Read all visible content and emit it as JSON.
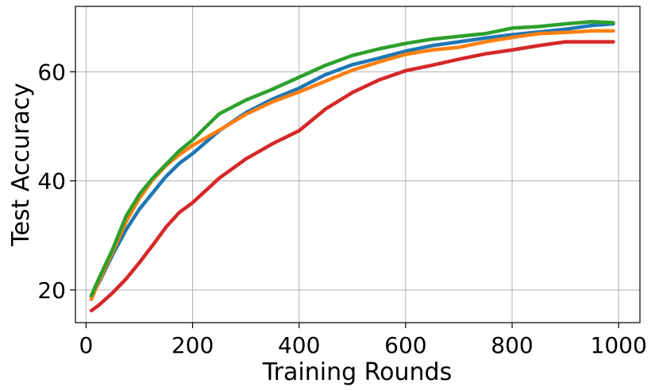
{
  "chart_data": {
    "type": "line",
    "title": "",
    "xlabel": "Training Rounds",
    "ylabel": "Test Accuracy",
    "xlim": [
      -20,
      1040
    ],
    "ylim": [
      14,
      72
    ],
    "xticks": [
      0,
      200,
      400,
      600,
      800,
      1000
    ],
    "yticks": [
      20,
      40,
      60
    ],
    "grid": true,
    "series": [
      {
        "color": "#1f77b4",
        "x": [
          10,
          25,
          50,
          75,
          100,
          125,
          150,
          175,
          200,
          250,
          300,
          350,
          400,
          450,
          500,
          550,
          600,
          650,
          700,
          750,
          800,
          850,
          900,
          950,
          990
        ],
        "y": [
          18.8,
          21.5,
          26.5,
          31,
          34.8,
          37.8,
          40.8,
          43.2,
          45,
          49.2,
          52.5,
          55,
          57,
          59.5,
          61.3,
          62.5,
          63.8,
          64.8,
          65.5,
          66.2,
          66.8,
          67.3,
          67.8,
          68.5,
          68.8
        ]
      },
      {
        "color": "#ff7f0e",
        "x": [
          10,
          25,
          50,
          75,
          100,
          125,
          150,
          175,
          200,
          250,
          300,
          350,
          400,
          450,
          500,
          550,
          600,
          650,
          700,
          750,
          800,
          850,
          900,
          950,
          990
        ],
        "y": [
          18.3,
          21.8,
          27,
          32.5,
          36.8,
          40.2,
          42.8,
          44.8,
          46.5,
          49.3,
          52.2,
          54.5,
          56.3,
          58.3,
          60.3,
          61.8,
          63.2,
          64,
          64.5,
          65.5,
          66.3,
          67,
          67.2,
          67.5,
          67.5
        ]
      },
      {
        "color": "#2ca02c",
        "x": [
          10,
          25,
          50,
          75,
          100,
          125,
          150,
          175,
          200,
          250,
          300,
          350,
          400,
          450,
          500,
          550,
          600,
          650,
          700,
          750,
          800,
          850,
          900,
          950,
          990
        ],
        "y": [
          19,
          22.3,
          27.5,
          33.5,
          37.5,
          40.5,
          43,
          45.5,
          47.5,
          52.3,
          54.8,
          56.8,
          59,
          61.2,
          63,
          64.2,
          65.2,
          66,
          66.5,
          67,
          68,
          68.3,
          68.8,
          69.2,
          69
        ]
      },
      {
        "color": "#d62728",
        "x": [
          10,
          25,
          50,
          75,
          100,
          125,
          150,
          175,
          200,
          250,
          300,
          350,
          400,
          450,
          500,
          550,
          600,
          650,
          700,
          750,
          800,
          850,
          900,
          950,
          990
        ],
        "y": [
          16.2,
          17.3,
          19.5,
          22,
          25,
          28.2,
          31.5,
          34.2,
          36,
          40.5,
          44,
          46.8,
          49.2,
          53.2,
          56.2,
          58.5,
          60.2,
          61.2,
          62.3,
          63.3,
          64,
          64.8,
          65.5,
          65.5,
          65.5
        ]
      }
    ]
  }
}
